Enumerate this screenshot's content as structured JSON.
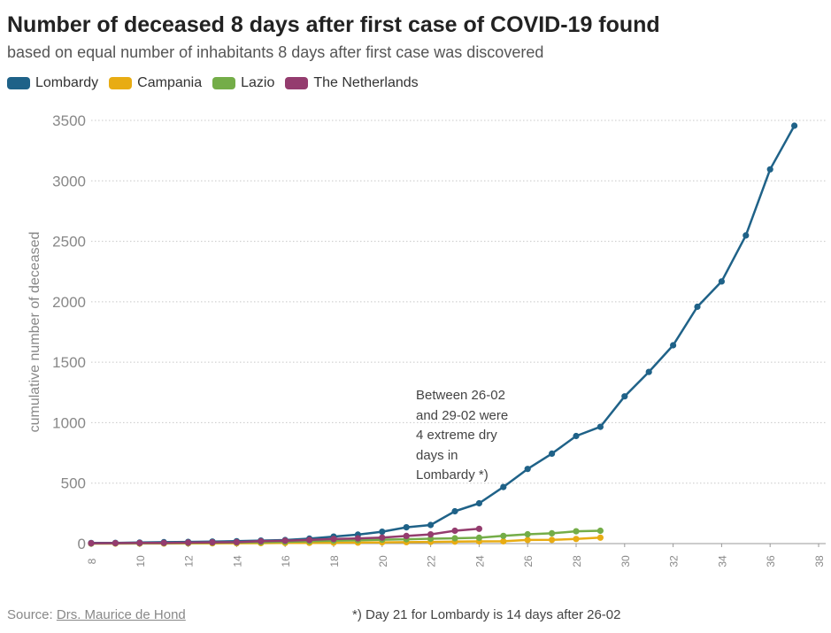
{
  "chart_data": {
    "type": "line",
    "title": "Number of deceased 8 days after first case of COVID-19 found",
    "subtitle": "based on equal number of inhabitants 8 days after first case was discovered",
    "ylabel": "cumulative number of deceased",
    "xlabel": "",
    "xlim": [
      8,
      38
    ],
    "ylim": [
      0,
      3500
    ],
    "x_ticks": [
      "8",
      "10",
      "12",
      "14",
      "16",
      "18",
      "20",
      "22",
      "24",
      "26",
      "28",
      "30",
      "32",
      "34",
      "36",
      "38"
    ],
    "y_ticks": [
      "0",
      "500",
      "1000",
      "1500",
      "2000",
      "2500",
      "3000",
      "3500"
    ],
    "grid": "horizontal dotted",
    "legend_position": "top-left",
    "series": [
      {
        "name": "Lombardy",
        "color": "#1f6288",
        "points": [
          [
            8,
            5
          ],
          [
            9,
            6
          ],
          [
            10,
            9
          ],
          [
            11,
            12
          ],
          [
            12,
            14
          ],
          [
            13,
            17
          ],
          [
            14,
            20
          ],
          [
            15,
            25
          ],
          [
            16,
            29
          ],
          [
            17,
            41
          ],
          [
            18,
            58
          ],
          [
            19,
            74
          ],
          [
            20,
            98
          ],
          [
            21,
            135
          ],
          [
            22,
            154
          ],
          [
            23,
            267
          ],
          [
            24,
            333
          ],
          [
            25,
            468
          ],
          [
            26,
            617
          ],
          [
            27,
            744
          ],
          [
            28,
            890
          ],
          [
            29,
            966
          ],
          [
            30,
            1218
          ],
          [
            31,
            1420
          ],
          [
            32,
            1640
          ],
          [
            33,
            1959
          ],
          [
            34,
            2168
          ],
          [
            35,
            2549
          ],
          [
            36,
            3095
          ],
          [
            37,
            3456
          ]
        ]
      },
      {
        "name": "Campania",
        "color": "#e8ac13",
        "points": [
          [
            8,
            0
          ],
          [
            9,
            0
          ],
          [
            10,
            1
          ],
          [
            11,
            1
          ],
          [
            12,
            2
          ],
          [
            13,
            2
          ],
          [
            14,
            3
          ],
          [
            15,
            4
          ],
          [
            16,
            5
          ],
          [
            17,
            6
          ],
          [
            18,
            7
          ],
          [
            19,
            8
          ],
          [
            20,
            10
          ],
          [
            21,
            12
          ],
          [
            22,
            14
          ],
          [
            23,
            16
          ],
          [
            24,
            18
          ],
          [
            25,
            19
          ],
          [
            26,
            30
          ],
          [
            27,
            31
          ],
          [
            28,
            38
          ],
          [
            29,
            49
          ]
        ]
      },
      {
        "name": "Lazio",
        "color": "#74ad48",
        "points": [
          [
            8,
            1
          ],
          [
            9,
            2
          ],
          [
            10,
            3
          ],
          [
            11,
            4
          ],
          [
            12,
            5
          ],
          [
            13,
            7
          ],
          [
            14,
            9
          ],
          [
            15,
            12
          ],
          [
            16,
            15
          ],
          [
            17,
            19
          ],
          [
            18,
            24
          ],
          [
            19,
            28
          ],
          [
            20,
            32
          ],
          [
            21,
            36
          ],
          [
            22,
            40
          ],
          [
            23,
            44
          ],
          [
            24,
            48
          ],
          [
            25,
            64
          ],
          [
            26,
            77
          ],
          [
            27,
            85
          ],
          [
            28,
            102
          ],
          [
            29,
            106
          ]
        ]
      },
      {
        "name": "The Netherlands",
        "color": "#943c6e",
        "points": [
          [
            8,
            3
          ],
          [
            9,
            4
          ],
          [
            10,
            5
          ],
          [
            11,
            6
          ],
          [
            12,
            8
          ],
          [
            13,
            10
          ],
          [
            14,
            12
          ],
          [
            15,
            20
          ],
          [
            16,
            24
          ],
          [
            17,
            30
          ],
          [
            18,
            38
          ],
          [
            19,
            43
          ],
          [
            20,
            50
          ],
          [
            21,
            63
          ],
          [
            22,
            76
          ],
          [
            23,
            106
          ],
          [
            24,
            122
          ]
        ]
      }
    ],
    "annotations": [
      "Between 26-02",
      "and 29-02 were",
      "4 extreme dry",
      "days in",
      "Lombardy *)"
    ]
  },
  "source_prefix": "Source: ",
  "source_link": "Drs. Maurice de Hond",
  "footnote": "*) Day 21 for Lombardy is 14 days after 26-02"
}
